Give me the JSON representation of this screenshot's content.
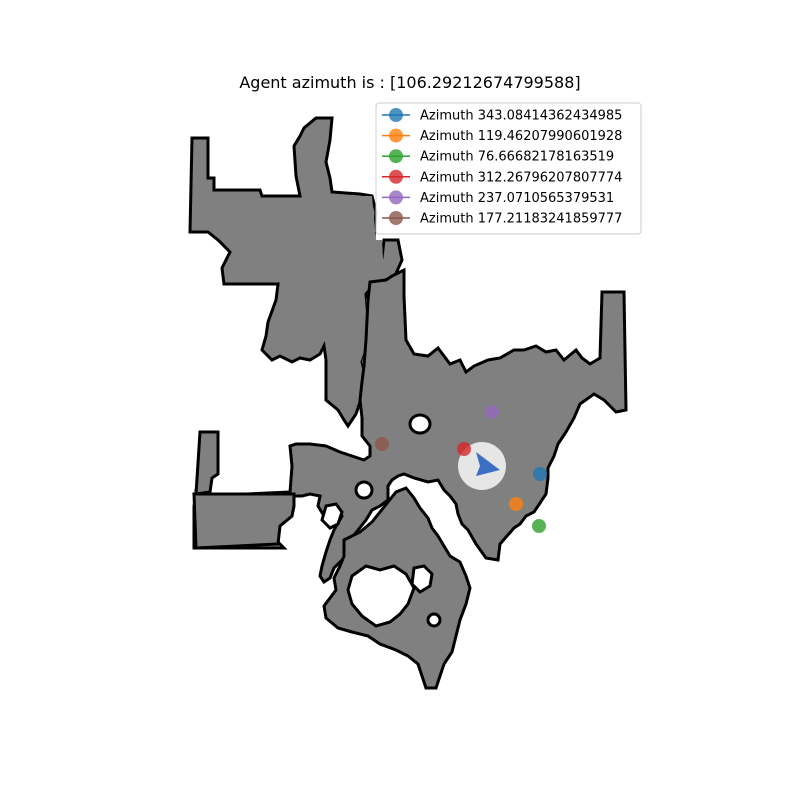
{
  "title": "Agent azimuth is : [106.29212674799588]",
  "agent": {
    "color": "#3b6fc4"
  },
  "map": {
    "floor_color": "#808080",
    "wall_color": "#000000",
    "background": "#ffffff",
    "agent_halo_color": "#e6e6e6"
  },
  "legend": {
    "items": [
      {
        "label": "Azimuth 343.08414362434985",
        "color": "#1f77b4"
      },
      {
        "label": "Azimuth 119.46207990601928",
        "color": "#ff7f0e"
      },
      {
        "label": "Azimuth 76.66682178163519",
        "color": "#2ca02c"
      },
      {
        "label": "Azimuth 312.26796207807774",
        "color": "#d62728"
      },
      {
        "label": "Azimuth 237.0710565379531",
        "color": "#9467bd"
      },
      {
        "label": "Azimuth 177.21183241859777",
        "color": "#8c564b"
      }
    ]
  },
  "markers": [
    {
      "label": "Azimuth 343.08414362434985",
      "color": "#1f77b4"
    },
    {
      "label": "Azimuth 119.46207990601928",
      "color": "#ff7f0e"
    },
    {
      "label": "Azimuth 76.66682178163519",
      "color": "#2ca02c"
    },
    {
      "label": "Azimuth 312.26796207807774",
      "color": "#d62728"
    },
    {
      "label": "Azimuth 237.0710565379531",
      "color": "#9467bd"
    },
    {
      "label": "Azimuth 177.21183241859777",
      "color": "#8c564b"
    }
  ]
}
